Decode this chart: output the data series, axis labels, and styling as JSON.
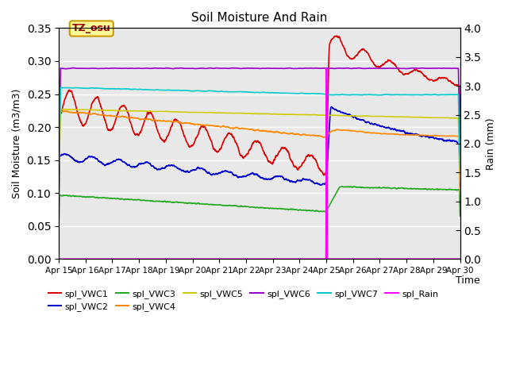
{
  "title": "Soil Moisture And Rain",
  "xlabel": "Time",
  "ylabel_left": "Soil Moisture (m3/m3)",
  "ylabel_right": "Rain (mm)",
  "ylim_left": [
    0.0,
    0.35
  ],
  "ylim_right": [
    0.0,
    4.0
  ],
  "x_tick_labels": [
    "Apr 15",
    "Apr 16",
    "Apr 17",
    "Apr 18",
    "Apr 19",
    "Apr 20",
    "Apr 21",
    "Apr 22",
    "Apr 23",
    "Apr 24",
    "Apr 25",
    "Apr 26",
    "Apr 27",
    "Apr 28",
    "Apr 29",
    "Apr 30"
  ],
  "annotation_label": "TZ_osu",
  "annotation_color": "#990000",
  "annotation_bg": "#ffff99",
  "annotation_border": "#cc9900",
  "background_color": "#e8e8e8",
  "series": {
    "spl_VWC1": {
      "color": "#dd0000",
      "lw": 1.2
    },
    "spl_VWC2": {
      "color": "#0000cc",
      "lw": 1.2
    },
    "spl_VWC3": {
      "color": "#22aa22",
      "lw": 1.2
    },
    "spl_VWC4": {
      "color": "#ff8800",
      "lw": 1.2
    },
    "spl_VWC5": {
      "color": "#cccc00",
      "lw": 1.2
    },
    "spl_VWC6": {
      "color": "#9900cc",
      "lw": 1.2
    },
    "spl_VWC7": {
      "color": "#00cccc",
      "lw": 1.2
    },
    "spl_Rain": {
      "color": "#ff00ff",
      "lw": 1.5
    }
  }
}
